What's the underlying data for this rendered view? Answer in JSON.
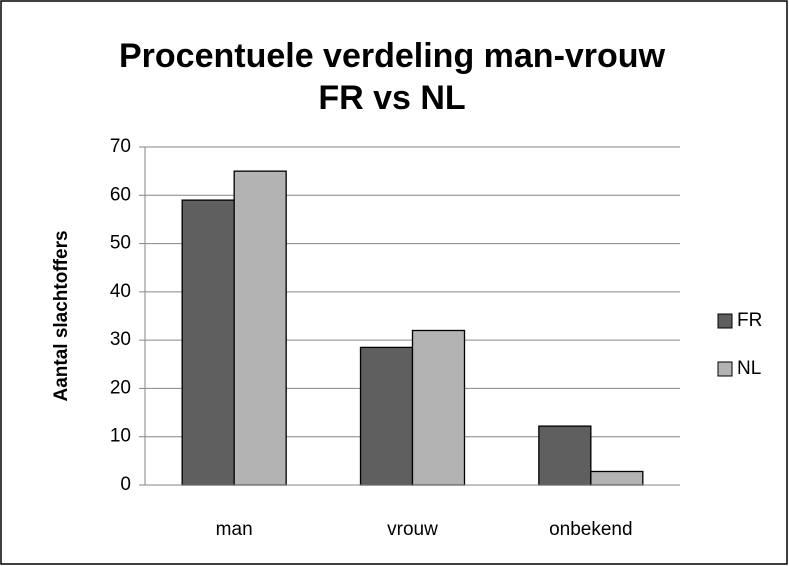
{
  "chart_data": {
    "type": "bar",
    "title": [
      "Procentuele verdeling man-vrouw",
      "FR vs NL"
    ],
    "y_label": "Aantal slachtoffers",
    "categories": [
      "man",
      "vrouw",
      "onbekend"
    ],
    "series": [
      {
        "name": "FR",
        "color": "#5f5f5f",
        "values": [
          59,
          28.5,
          12.2
        ]
      },
      {
        "name": "NL",
        "color": "#b3b3b3",
        "values": [
          65,
          32,
          2.8
        ]
      }
    ],
    "ylim": [
      0,
      70
    ],
    "yticks": [
      0,
      10,
      20,
      30,
      40,
      50,
      60,
      70
    ],
    "grid": true,
    "legend": "right"
  }
}
